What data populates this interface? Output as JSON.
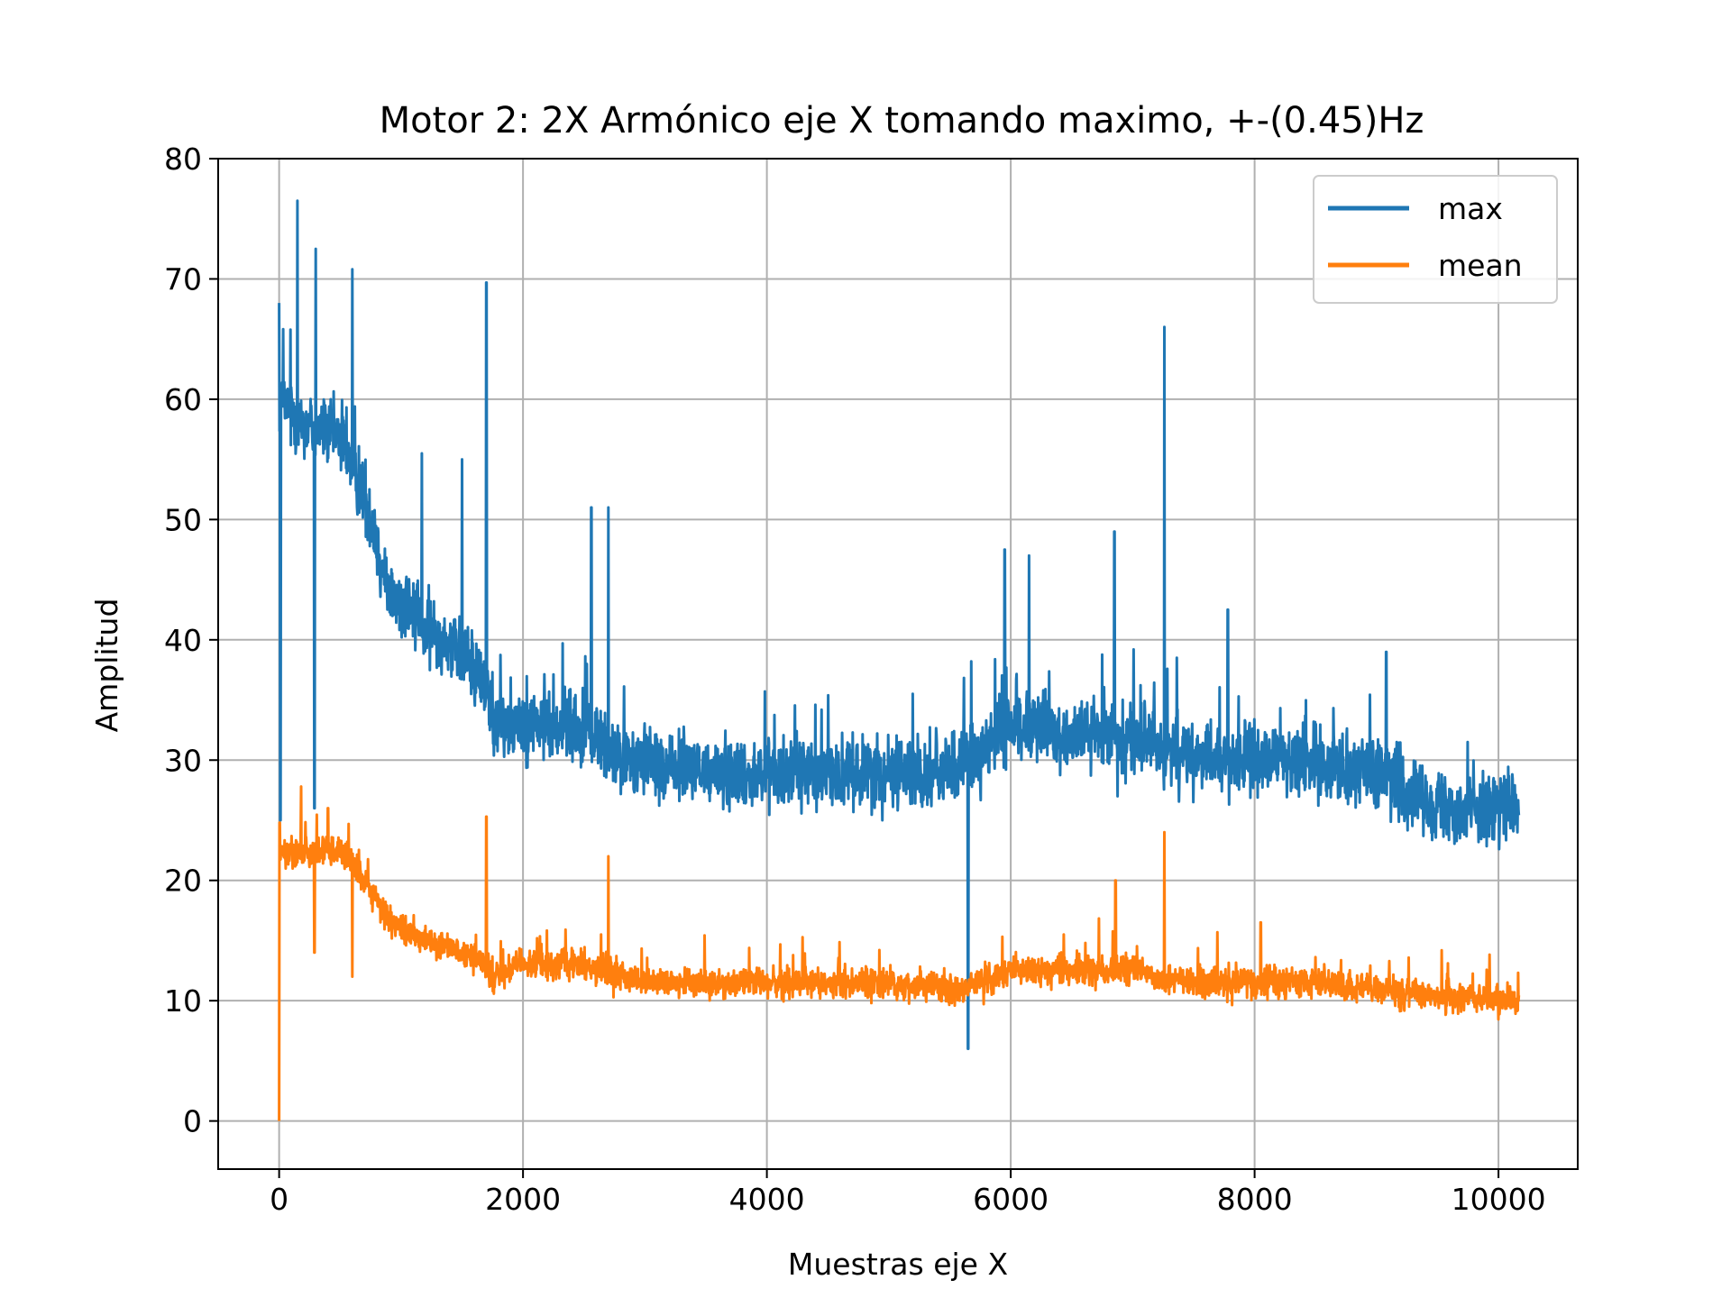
{
  "chart_data": {
    "type": "line",
    "title": "Motor 2: 2X Armónico eje X tomando maximo, +-(0.45)Hz",
    "xlabel": "Muestras eje X",
    "ylabel": "Amplitud",
    "xlim": [
      -500,
      10650
    ],
    "ylim": [
      -4,
      80
    ],
    "xticks": [
      0,
      2000,
      4000,
      6000,
      8000,
      10000
    ],
    "yticks": [
      0,
      10,
      20,
      30,
      40,
      50,
      60,
      70,
      80
    ],
    "xtick_labels": [
      "0",
      "2000",
      "4000",
      "6000",
      "8000",
      "10000"
    ],
    "ytick_labels": [
      "0",
      "10",
      "20",
      "30",
      "40",
      "50",
      "60",
      "70",
      "80"
    ],
    "grid": true,
    "legend_position": "top-right",
    "n_points": 10170,
    "series": [
      {
        "name": "max",
        "color": "#1f77b4",
        "trend": [
          [
            0,
            60
          ],
          [
            200,
            58
          ],
          [
            500,
            57
          ],
          [
            700,
            52
          ],
          [
            900,
            44
          ],
          [
            1200,
            41
          ],
          [
            1500,
            39
          ],
          [
            1700,
            36
          ],
          [
            1750,
            33
          ],
          [
            2000,
            33
          ],
          [
            2300,
            33
          ],
          [
            2600,
            32
          ],
          [
            2800,
            30
          ],
          [
            3500,
            29
          ],
          [
            4500,
            29
          ],
          [
            5500,
            29
          ],
          [
            5800,
            31
          ],
          [
            6000,
            33
          ],
          [
            6500,
            32
          ],
          [
            7000,
            32
          ],
          [
            7500,
            30
          ],
          [
            8000,
            30
          ],
          [
            8500,
            30
          ],
          [
            9000,
            29
          ],
          [
            9300,
            27
          ],
          [
            9600,
            26
          ],
          [
            10170,
            26
          ]
        ],
        "spikes": [
          [
            0,
            68
          ],
          [
            150,
            76.5
          ],
          [
            300,
            72.5
          ],
          [
            600,
            70.8
          ],
          [
            1700,
            69.7
          ],
          [
            7260,
            66
          ],
          [
            5650,
            6
          ],
          [
            290,
            26
          ],
          [
            10,
            25
          ],
          [
            1170,
            55.5
          ],
          [
            1500,
            55
          ],
          [
            2560,
            51
          ],
          [
            2700,
            51
          ],
          [
            5950,
            47.5
          ],
          [
            6150,
            47
          ],
          [
            6850,
            49
          ],
          [
            7780,
            42.5
          ],
          [
            9080,
            39
          ]
        ],
        "noise": 4.2
      },
      {
        "name": "mean",
        "color": "#ff7f0e",
        "trend": [
          [
            0,
            22
          ],
          [
            200,
            22.5
          ],
          [
            500,
            22.5
          ],
          [
            700,
            20
          ],
          [
            900,
            16.5
          ],
          [
            1200,
            15
          ],
          [
            1500,
            14
          ],
          [
            1700,
            13
          ],
          [
            1750,
            12
          ],
          [
            2000,
            13
          ],
          [
            2500,
            13
          ],
          [
            2700,
            12.5
          ],
          [
            3000,
            11.5
          ],
          [
            4000,
            11.5
          ],
          [
            5000,
            11.5
          ],
          [
            5600,
            11
          ],
          [
            6000,
            12.5
          ],
          [
            6500,
            12.5
          ],
          [
            7000,
            12.5
          ],
          [
            7500,
            11.5
          ],
          [
            8000,
            11.5
          ],
          [
            8500,
            11.5
          ],
          [
            9000,
            11
          ],
          [
            9300,
            10.5
          ],
          [
            10170,
            10
          ]
        ],
        "spikes": [
          [
            0,
            0
          ],
          [
            5,
            24.8
          ],
          [
            180,
            27.8
          ],
          [
            400,
            26
          ],
          [
            1700,
            25.3
          ],
          [
            2700,
            22
          ],
          [
            7260,
            24
          ],
          [
            6860,
            20
          ],
          [
            8050,
            16.5
          ],
          [
            290,
            14
          ],
          [
            600,
            12
          ]
        ],
        "noise": 1.8
      }
    ]
  }
}
